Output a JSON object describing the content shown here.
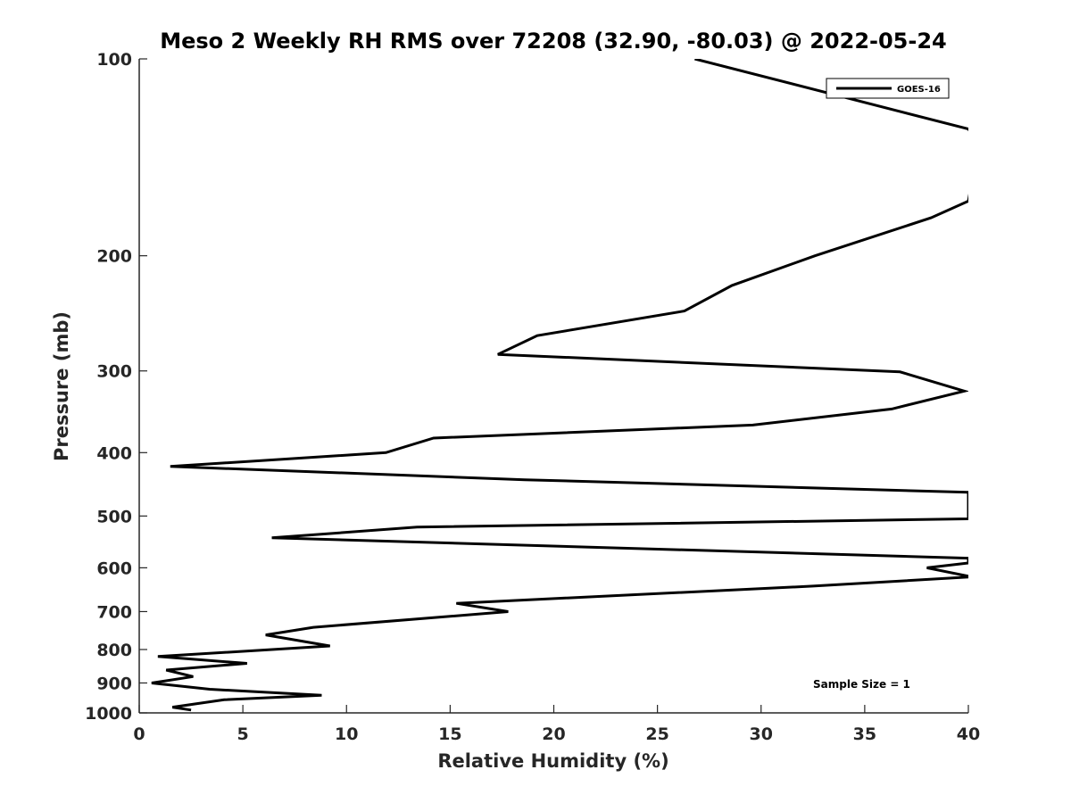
{
  "chart_data": {
    "type": "line",
    "title": "Meso 2 Weekly RH RMS over 72208 (32.90, -80.03) @ 2022-05-24",
    "xlabel": "Relative Humidity (%)",
    "ylabel": "Pressure (mb)",
    "xlim": [
      0,
      40
    ],
    "ylim": [
      100,
      1000
    ],
    "y_scale": "log",
    "y_reversed": true,
    "x_ticks": [
      "0",
      "5",
      "10",
      "15",
      "20",
      "25",
      "30",
      "35",
      "40"
    ],
    "y_ticks": [
      "100",
      "200",
      "300",
      "400",
      "500",
      "600",
      "700",
      "800",
      "900",
      "1000"
    ],
    "grid": false,
    "legend": {
      "placement": "top-right",
      "entries": [
        "GOES-16"
      ]
    },
    "annotation": "Sample Size = 1",
    "series": [
      {
        "name": "GOES-16",
        "color": "#000000",
        "x": [
          26.8,
          40.0,
          40.5,
          40.0,
          38.2,
          32.6,
          28.6,
          26.3,
          19.2,
          17.3,
          36.7,
          39.8,
          36.3,
          29.6,
          14.2,
          11.9,
          1.5,
          18.6,
          40.0,
          40.0,
          13.4,
          6.4,
          40.0,
          40.0,
          38.0,
          40.0,
          40.0,
          32.5,
          15.3,
          17.8,
          8.4,
          6.1,
          9.2,
          0.9,
          5.2,
          1.3,
          2.6,
          0.6,
          3.4,
          8.8,
          4.1,
          1.6,
          2.5
        ],
        "y": [
          100,
          128,
          135,
          165,
          175,
          200,
          222,
          243,
          265,
          283,
          301,
          322,
          343,
          363,
          380,
          400,
          420,
          440,
          460,
          505,
          520,
          540,
          580,
          590,
          600,
          618,
          620,
          640,
          680,
          700,
          740,
          760,
          790,
          820,
          840,
          860,
          880,
          900,
          920,
          940,
          955,
          980,
          990
        ]
      }
    ]
  }
}
